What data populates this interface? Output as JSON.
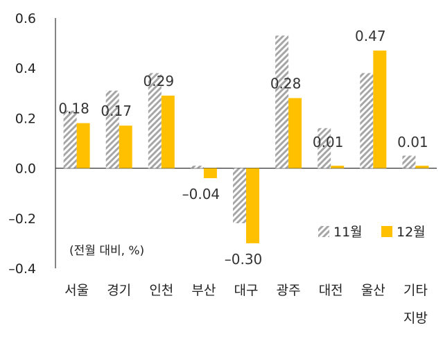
{
  "chart_data": {
    "type": "bar",
    "categories": [
      "서울",
      "경기",
      "인천",
      "부산",
      "대구",
      "광주",
      "대전",
      "울산",
      "기타 지방"
    ],
    "series": [
      {
        "name": "11월",
        "values": [
          0.23,
          0.31,
          0.38,
          0.01,
          -0.22,
          0.53,
          0.16,
          0.38,
          0.05
        ],
        "pattern": "hatched-gray"
      },
      {
        "name": "12월",
        "values": [
          0.18,
          0.17,
          0.29,
          -0.04,
          -0.3,
          0.28,
          0.01,
          0.47,
          0.01
        ],
        "color": "#FFC000"
      }
    ],
    "data_labels": [
      "0.18",
      "0.17",
      "0.29",
      "–0.04",
      "–0.30",
      "0.28",
      "0.01",
      "0.47",
      "0.01"
    ],
    "y_ticks": [
      "0.6",
      "0.4",
      "0.2",
      "0.0",
      "–0.2",
      "–0.4"
    ],
    "ylim": [
      -0.4,
      0.6
    ],
    "unit_note": "(전월 대비, %)",
    "legend_position": "bottom-right",
    "grid": false
  }
}
